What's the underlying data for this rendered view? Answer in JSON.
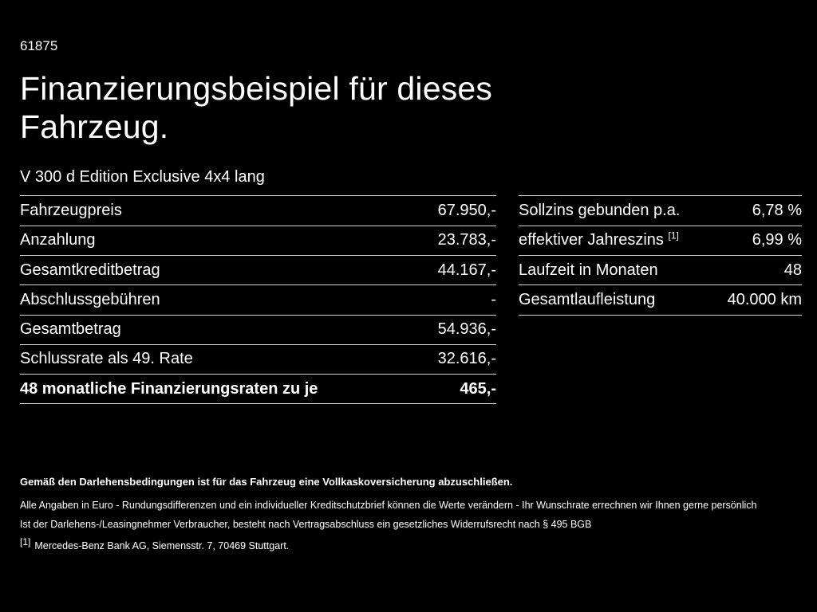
{
  "page": {
    "doc_number": "61875",
    "title_line1": "Finanzierungsbeispiel für dieses",
    "title_line2": "Fahrzeug.",
    "subtitle": "V 300 d Edition Exclusive 4x4 lang"
  },
  "left_table": {
    "rows": [
      {
        "label": "Fahrzeugpreis",
        "value": "67.950,-"
      },
      {
        "label": "Anzahlung",
        "value": "23.783,-"
      },
      {
        "label": "Gesamtkreditbetrag",
        "value": "44.167,-"
      },
      {
        "label": "Abschlussgebühren",
        "value": "-"
      },
      {
        "label": "Gesamtbetrag",
        "value": "54.936,-"
      },
      {
        "label": "Schlussrate als 49. Rate",
        "value": "32.616,-"
      },
      {
        "label": "48 monatliche Finanzierungsraten zu je",
        "value": "465,-",
        "bold": true
      }
    ]
  },
  "right_table": {
    "rows": [
      {
        "label": "Sollzins gebunden p.a.",
        "value": "6,78 %"
      },
      {
        "label": "effektiver Jahreszins",
        "sup": "[1]",
        "value": "6,99 %"
      },
      {
        "label": "Laufzeit in Monaten",
        "value": "48"
      },
      {
        "label": "Gesamtlaufleistung",
        "value": "40.000 km"
      }
    ]
  },
  "footer": {
    "insurance_note": "Gemäß den Darlehensbedingungen ist für das Fahrzeug eine Vollkaskoversicherung abzuschließen.",
    "disclaimer_line": "Alle Angaben in Euro - Rundungsdifferenzen und ein individueller Kreditschutzbrief können die Werte verändern - Ihr Wunschrate errechnen wir Ihnen gerne persönlich",
    "withdrawal_note": "Ist der Darlehens-/Leasingnehmer Verbraucher, besteht nach Vertragsabschluss ein gesetzliches Widerrufsrecht nach § 495 BGB",
    "footnote_marker": "[1]",
    "footnote_text": "Mercedes-Benz Bank AG, Siemensstr. 7, 70469 Stuttgart."
  },
  "colors": {
    "background": "#000000",
    "text": "#ffffff",
    "divider": "#d6d6d6"
  }
}
